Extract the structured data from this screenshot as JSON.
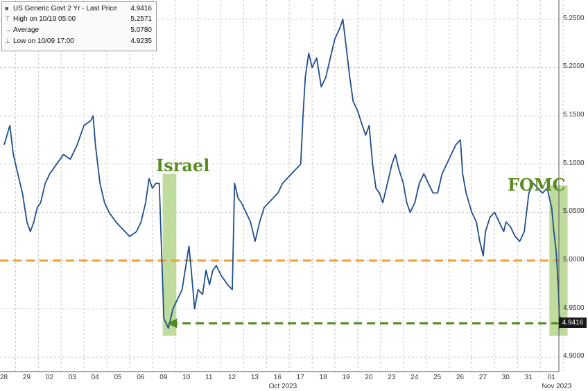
{
  "legend": {
    "title": "US Generic Govt 2 Yr - Last Price",
    "title_value": "4.9416",
    "rows": [
      {
        "label": "High on 10/19 05:00",
        "value": "5.2571"
      },
      {
        "label": "Average",
        "value": "5.0780"
      },
      {
        "label": "Low on 10/09 17:00",
        "value": "4.9235"
      }
    ]
  },
  "annotations": {
    "israel": "Israel",
    "fomc": "FOMC"
  },
  "last_price_label": "4.9416",
  "colors": {
    "line": "#1f4e8c",
    "reference": "#f0a030",
    "arrow": "#4e8a1e",
    "highlight": "#a9cf7e"
  },
  "chart_data": {
    "type": "line",
    "y_ticks": [
      "5.2500",
      "5.2000",
      "5.1500",
      "5.1000",
      "5.0500",
      "5.0000",
      "4.9500",
      "4.9000"
    ],
    "ylim": [
      4.885,
      5.27
    ],
    "x_day_labels": [
      "28",
      "29",
      "02",
      "03",
      "04",
      "05",
      "06",
      "09",
      "10",
      "11",
      "12",
      "13",
      "16",
      "17",
      "18",
      "19",
      "20",
      "23",
      "24",
      "25",
      "26",
      "27",
      "30",
      "31",
      "01"
    ],
    "x_month_labels": [
      "Oct 2023",
      "Nov 2023"
    ],
    "reference_line": 5.0,
    "series": [
      {
        "values": [
          [
            0.0,
            5.12
          ],
          [
            0.25,
            5.14
          ],
          [
            0.4,
            5.11
          ],
          [
            0.6,
            5.09
          ],
          [
            0.8,
            5.07
          ],
          [
            1.0,
            5.04
          ],
          [
            1.15,
            5.03
          ],
          [
            1.3,
            5.04
          ],
          [
            1.45,
            5.055
          ],
          [
            1.6,
            5.06
          ],
          [
            1.8,
            5.08
          ],
          [
            2.0,
            5.09
          ],
          [
            2.3,
            5.1
          ],
          [
            2.6,
            5.11
          ],
          [
            2.9,
            5.105
          ],
          [
            3.0,
            5.11
          ],
          [
            3.2,
            5.12
          ],
          [
            3.5,
            5.14
          ],
          [
            3.8,
            5.145
          ],
          [
            3.9,
            5.15
          ],
          [
            4.0,
            5.12
          ],
          [
            4.2,
            5.08
          ],
          [
            4.4,
            5.06
          ],
          [
            4.6,
            5.05
          ],
          [
            4.9,
            5.04
          ],
          [
            5.1,
            5.035
          ],
          [
            5.3,
            5.03
          ],
          [
            5.5,
            5.025
          ],
          [
            5.8,
            5.03
          ],
          [
            6.0,
            5.04
          ],
          [
            6.2,
            5.06
          ],
          [
            6.35,
            5.085
          ],
          [
            6.5,
            5.075
          ],
          [
            6.65,
            5.08
          ],
          [
            6.8,
            5.08
          ],
          [
            7.0,
            4.94
          ],
          [
            7.2,
            4.93
          ],
          [
            7.4,
            4.95
          ],
          [
            7.6,
            4.96
          ],
          [
            7.8,
            4.97
          ],
          [
            8.0,
            5.0
          ],
          [
            8.1,
            5.015
          ],
          [
            8.2,
            4.99
          ],
          [
            8.35,
            4.95
          ],
          [
            8.5,
            4.97
          ],
          [
            8.7,
            4.965
          ],
          [
            8.85,
            4.99
          ],
          [
            9.0,
            4.975
          ],
          [
            9.15,
            4.99
          ],
          [
            9.3,
            4.995
          ],
          [
            9.5,
            4.985
          ],
          [
            9.65,
            4.98
          ],
          [
            9.8,
            4.975
          ],
          [
            10.0,
            4.97
          ],
          [
            10.1,
            5.08
          ],
          [
            10.25,
            5.065
          ],
          [
            10.4,
            5.06
          ],
          [
            10.6,
            5.05
          ],
          [
            10.8,
            5.04
          ],
          [
            11.0,
            5.02
          ],
          [
            11.2,
            5.04
          ],
          [
            11.4,
            5.055
          ],
          [
            11.6,
            5.06
          ],
          [
            11.8,
            5.065
          ],
          [
            12.0,
            5.07
          ],
          [
            12.2,
            5.08
          ],
          [
            12.4,
            5.085
          ],
          [
            12.6,
            5.09
          ],
          [
            12.8,
            5.095
          ],
          [
            13.0,
            5.1
          ],
          [
            13.1,
            5.15
          ],
          [
            13.2,
            5.19
          ],
          [
            13.35,
            5.215
          ],
          [
            13.5,
            5.2
          ],
          [
            13.7,
            5.21
          ],
          [
            13.9,
            5.18
          ],
          [
            14.1,
            5.19
          ],
          [
            14.3,
            5.21
          ],
          [
            14.5,
            5.23
          ],
          [
            14.7,
            5.24
          ],
          [
            14.85,
            5.25
          ],
          [
            15.0,
            5.22
          ],
          [
            15.15,
            5.19
          ],
          [
            15.3,
            5.165
          ],
          [
            15.5,
            5.155
          ],
          [
            15.7,
            5.14
          ],
          [
            15.85,
            5.13
          ],
          [
            16.0,
            5.14
          ],
          [
            16.15,
            5.1
          ],
          [
            16.3,
            5.075
          ],
          [
            16.45,
            5.07
          ],
          [
            16.6,
            5.06
          ],
          [
            16.8,
            5.08
          ],
          [
            17.0,
            5.1
          ],
          [
            17.15,
            5.11
          ],
          [
            17.3,
            5.095
          ],
          [
            17.5,
            5.08
          ],
          [
            17.65,
            5.06
          ],
          [
            17.8,
            5.05
          ],
          [
            18.0,
            5.06
          ],
          [
            18.2,
            5.08
          ],
          [
            18.4,
            5.09
          ],
          [
            18.6,
            5.08
          ],
          [
            18.8,
            5.07
          ],
          [
            19.0,
            5.07
          ],
          [
            19.2,
            5.09
          ],
          [
            19.4,
            5.1
          ],
          [
            19.6,
            5.11
          ],
          [
            19.8,
            5.12
          ],
          [
            20.0,
            5.125
          ],
          [
            20.1,
            5.09
          ],
          [
            20.25,
            5.07
          ],
          [
            20.5,
            5.05
          ],
          [
            20.7,
            5.04
          ],
          [
            20.85,
            5.02
          ],
          [
            21.0,
            5.005
          ],
          [
            21.1,
            5.03
          ],
          [
            21.3,
            5.045
          ],
          [
            21.5,
            5.05
          ],
          [
            21.7,
            5.04
          ],
          [
            21.9,
            5.03
          ],
          [
            22.0,
            5.04
          ],
          [
            22.2,
            5.035
          ],
          [
            22.4,
            5.025
          ],
          [
            22.6,
            5.02
          ],
          [
            22.8,
            5.03
          ],
          [
            23.0,
            5.07
          ],
          [
            23.2,
            5.08
          ],
          [
            23.4,
            5.075
          ],
          [
            23.6,
            5.07
          ],
          [
            23.8,
            5.075
          ],
          [
            23.9,
            5.065
          ],
          [
            24.0,
            5.055
          ],
          [
            24.1,
            5.03
          ],
          [
            24.2,
            5.01
          ],
          [
            24.3,
            4.97
          ],
          [
            24.35,
            4.93
          ],
          [
            24.4,
            4.9416
          ]
        ]
      }
    ]
  }
}
